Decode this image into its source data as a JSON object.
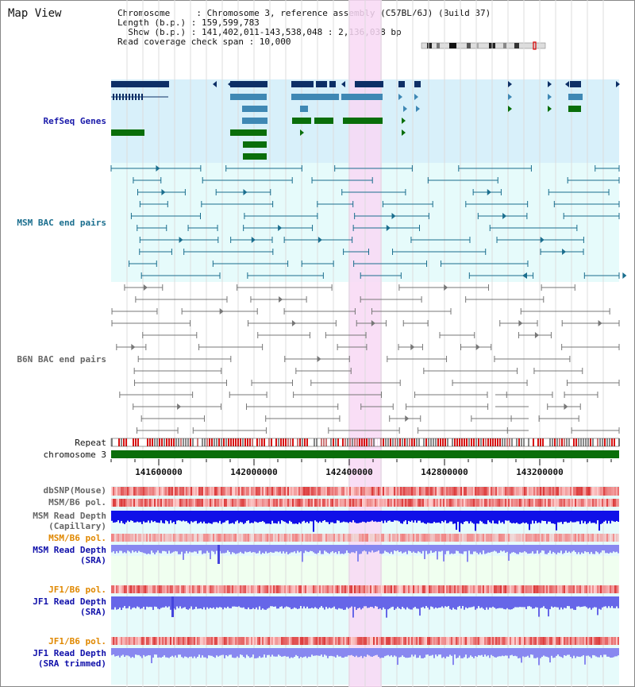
{
  "page_title": "Map View",
  "header": {
    "line1": "Chromosome     : Chromosome 3, reference assembly (C57BL/6J) (Build 37)",
    "line2": "Length (b.p.) : 159,599,783",
    "line3": "  Show (b.p.) : 141,402,011-143,538,048 : 2,136,038 bp",
    "line4": "Read coverage check span : 10,000"
  },
  "tracks": {
    "refseq": "RefSeq Genes",
    "msm_bac": "MSM BAC end pairs",
    "b6n_bac": "B6N BAC end pairs",
    "repeat": "Repeat",
    "chromosome": "chromosome 3",
    "dbsnp": "dbSNP(Mouse)",
    "msm_b6_pol": "MSM/B6 pol.",
    "msm_depth_cap_1": "MSM Read Depth",
    "msm_depth_cap_2": "(Capillary)",
    "msm_b6_pol_2": "MSM/B6 pol.",
    "msm_depth_sra_1": "MSM Read Depth",
    "msm_depth_sra_2": "(SRA)",
    "jf1_b6_pol": "JF1/B6 pol.",
    "jf1_depth_sra_1": "JF1 Read Depth",
    "jf1_depth_sra_2": "(SRA)",
    "jf1_b6_pol_2": "JF1/B6 pol.",
    "jf1_depth_trim_1": "JF1 Read Depth",
    "jf1_depth_trim_2": "(SRA trimmed)"
  },
  "axis": {
    "ticks": [
      "141600000",
      "142000000",
      "142400000",
      "142800000",
      "143200000"
    ]
  },
  "colors": {
    "refseq_label": "#1a1aaa",
    "msm_label": "#1a6e8e",
    "b6n_label": "#666666",
    "orange_label": "#e08800",
    "blue_label": "#1010aa",
    "highlight": "#f8d8f4",
    "chrom_bar": "#0a6e0a"
  }
}
